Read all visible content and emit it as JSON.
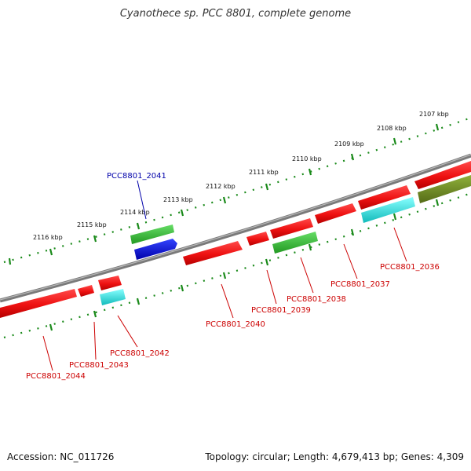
{
  "title": "Cyanothece sp. PCC 8801, complete genome",
  "footer": {
    "accession": "Accession: NC_011726",
    "summary": "Topology: circular; Length: 4,679,413 bp; Genes: 4,309"
  },
  "scale": {
    "unit": "kbp",
    "ticks": [
      "2107 kbp",
      "2108 kbp",
      "2109 kbp",
      "2110 kbp",
      "2111 kbp",
      "2112 kbp",
      "2113 kbp",
      "2114 kbp",
      "2115 kbp",
      "2116 kbp"
    ]
  },
  "colors": {
    "forward_strand_gene": "#ee1111",
    "reverse_strand_gene": "#ee1111",
    "green_track": "#33bb33",
    "cyan_track": "#22dddd",
    "blue_track": "#1122dd",
    "olive_track": "#6b8e23",
    "genome_line": "#808080",
    "tick_marks": "#1a8a1a",
    "label_red": "#cc0000",
    "label_blue": "#0000aa"
  },
  "genes": [
    {
      "name": "PCC8801_2036",
      "color": "red"
    },
    {
      "name": "PCC8801_2037",
      "color": "red"
    },
    {
      "name": "PCC8801_2038",
      "color": "red"
    },
    {
      "name": "PCC8801_2039",
      "color": "red"
    },
    {
      "name": "PCC8801_2040",
      "color": "red"
    },
    {
      "name": "PCC8801_2041",
      "color": "blue"
    },
    {
      "name": "PCC8801_2042",
      "color": "red"
    },
    {
      "name": "PCC8801_2043",
      "color": "red"
    },
    {
      "name": "PCC8801_2044",
      "color": "red"
    }
  ]
}
